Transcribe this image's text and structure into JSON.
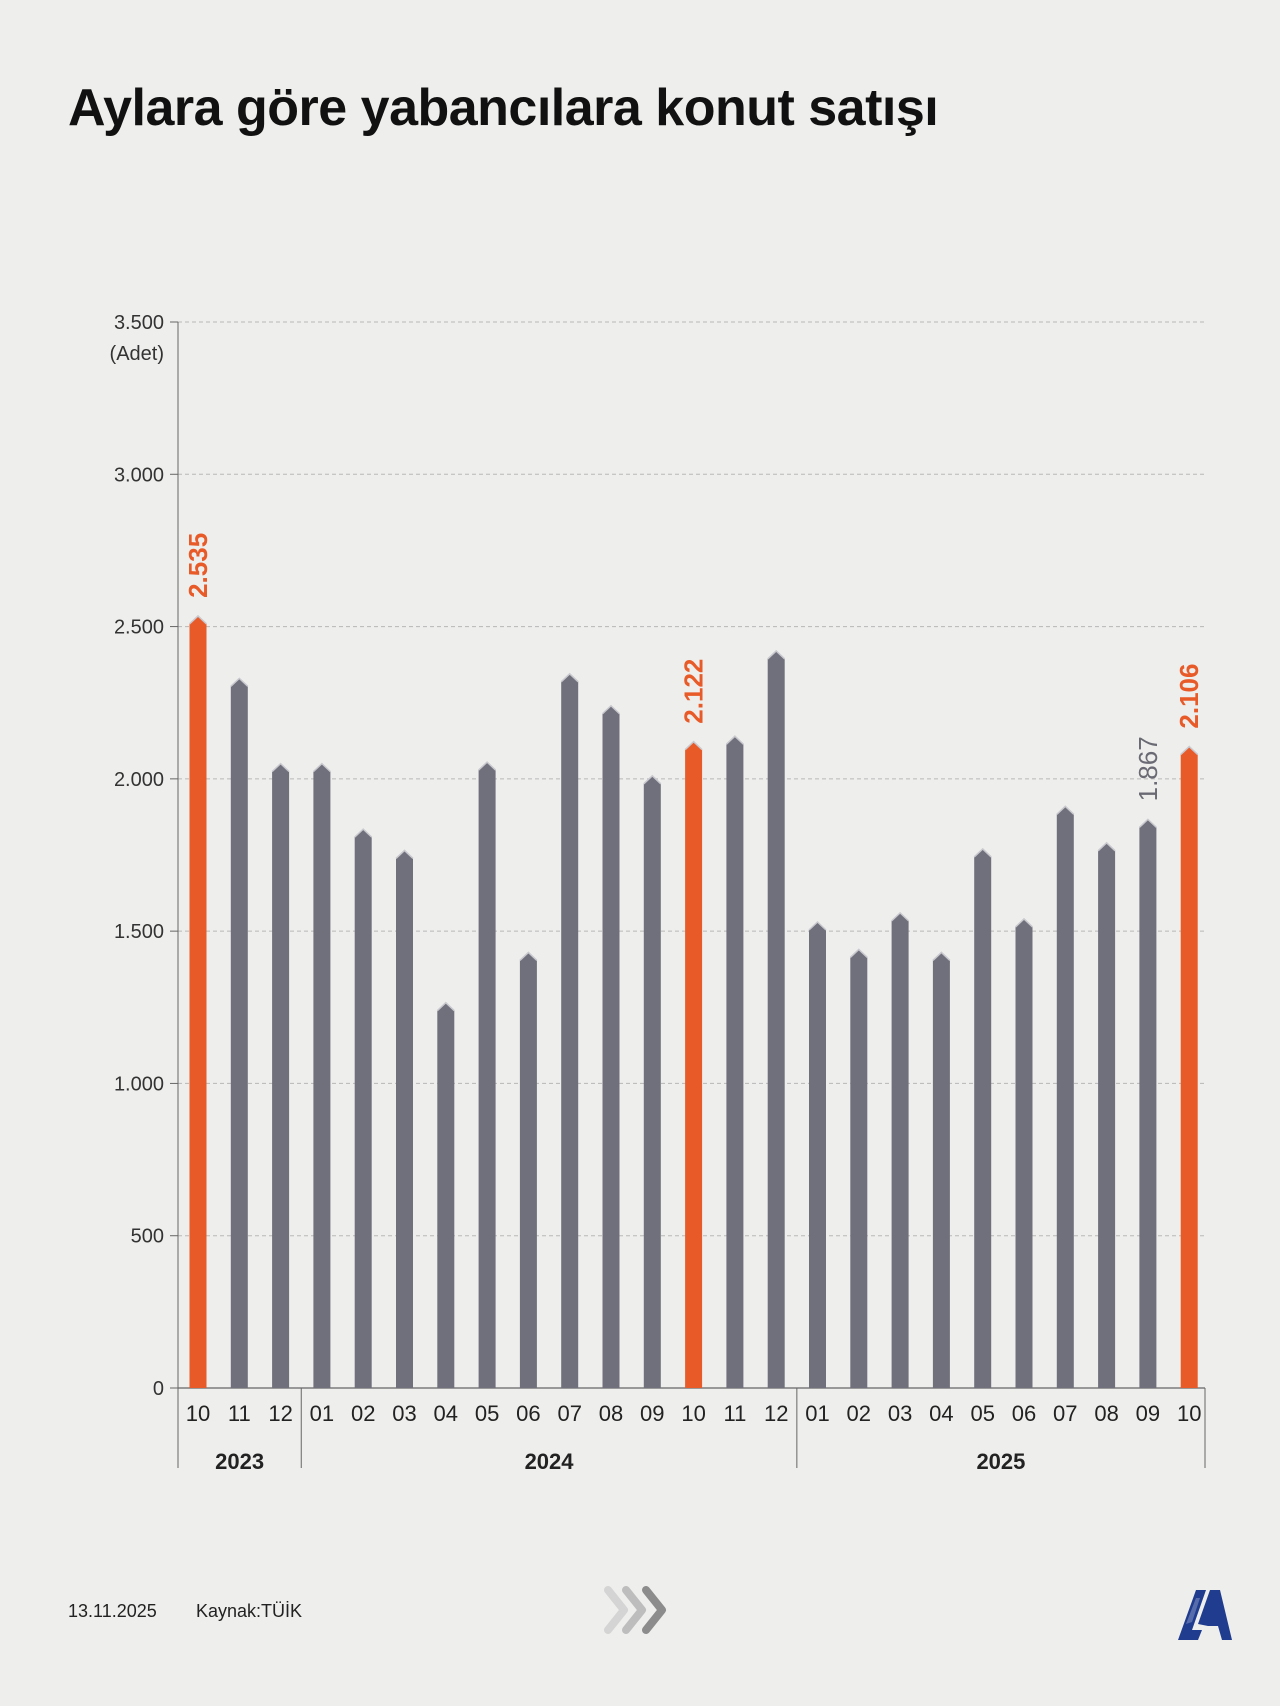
{
  "title": "Aylara göre yabancılara konut satışı",
  "footer": {
    "date": "13.11.2025",
    "source": "Kaynak:TÜİK"
  },
  "icons": {
    "chevrons": "forward-chevrons-icon",
    "logo": "aa-logo-icon"
  },
  "colors": {
    "bar": "#70707c",
    "highlight": "#e85a28",
    "grid": "#b8b8b8",
    "axis": "#666666"
  },
  "chart_data": {
    "type": "bar",
    "title": "Aylara göre yabancılara konut satışı",
    "ylabel": "(Adet)",
    "xlabel": "",
    "ylim": [
      0,
      3500
    ],
    "yticks": [
      0,
      500,
      1000,
      1500,
      2000,
      2500,
      3000,
      3500
    ],
    "ytick_labels": [
      "0",
      "500",
      "1.000",
      "1.500",
      "2.000",
      "2.500",
      "3.000",
      "3.500"
    ],
    "grid": true,
    "categories": [
      "10",
      "11",
      "12",
      "01",
      "02",
      "03",
      "04",
      "05",
      "06",
      "07",
      "08",
      "09",
      "10",
      "11",
      "12",
      "01",
      "02",
      "03",
      "04",
      "05",
      "06",
      "07",
      "08",
      "09",
      "10"
    ],
    "values": [
      2535,
      2330,
      2050,
      2050,
      1835,
      1765,
      1265,
      2055,
      1430,
      2345,
      2240,
      2010,
      2122,
      2140,
      2420,
      1530,
      1440,
      1560,
      1430,
      1770,
      1540,
      1910,
      1790,
      1867,
      2106
    ],
    "highlight": [
      true,
      false,
      false,
      false,
      false,
      false,
      false,
      false,
      false,
      false,
      false,
      false,
      true,
      false,
      false,
      false,
      false,
      false,
      false,
      false,
      false,
      false,
      false,
      false,
      true
    ],
    "data_labels": [
      {
        "index": 0,
        "text": "2.535",
        "style": "highlight"
      },
      {
        "index": 12,
        "text": "2.122",
        "style": "highlight"
      },
      {
        "index": 23,
        "text": "1.867",
        "style": "normal"
      },
      {
        "index": 24,
        "text": "2.106",
        "style": "highlight"
      }
    ],
    "year_groups": [
      {
        "label": "2023",
        "start": 0,
        "end": 2
      },
      {
        "label": "2024",
        "start": 3,
        "end": 14
      },
      {
        "label": "2025",
        "start": 15,
        "end": 24
      }
    ]
  }
}
